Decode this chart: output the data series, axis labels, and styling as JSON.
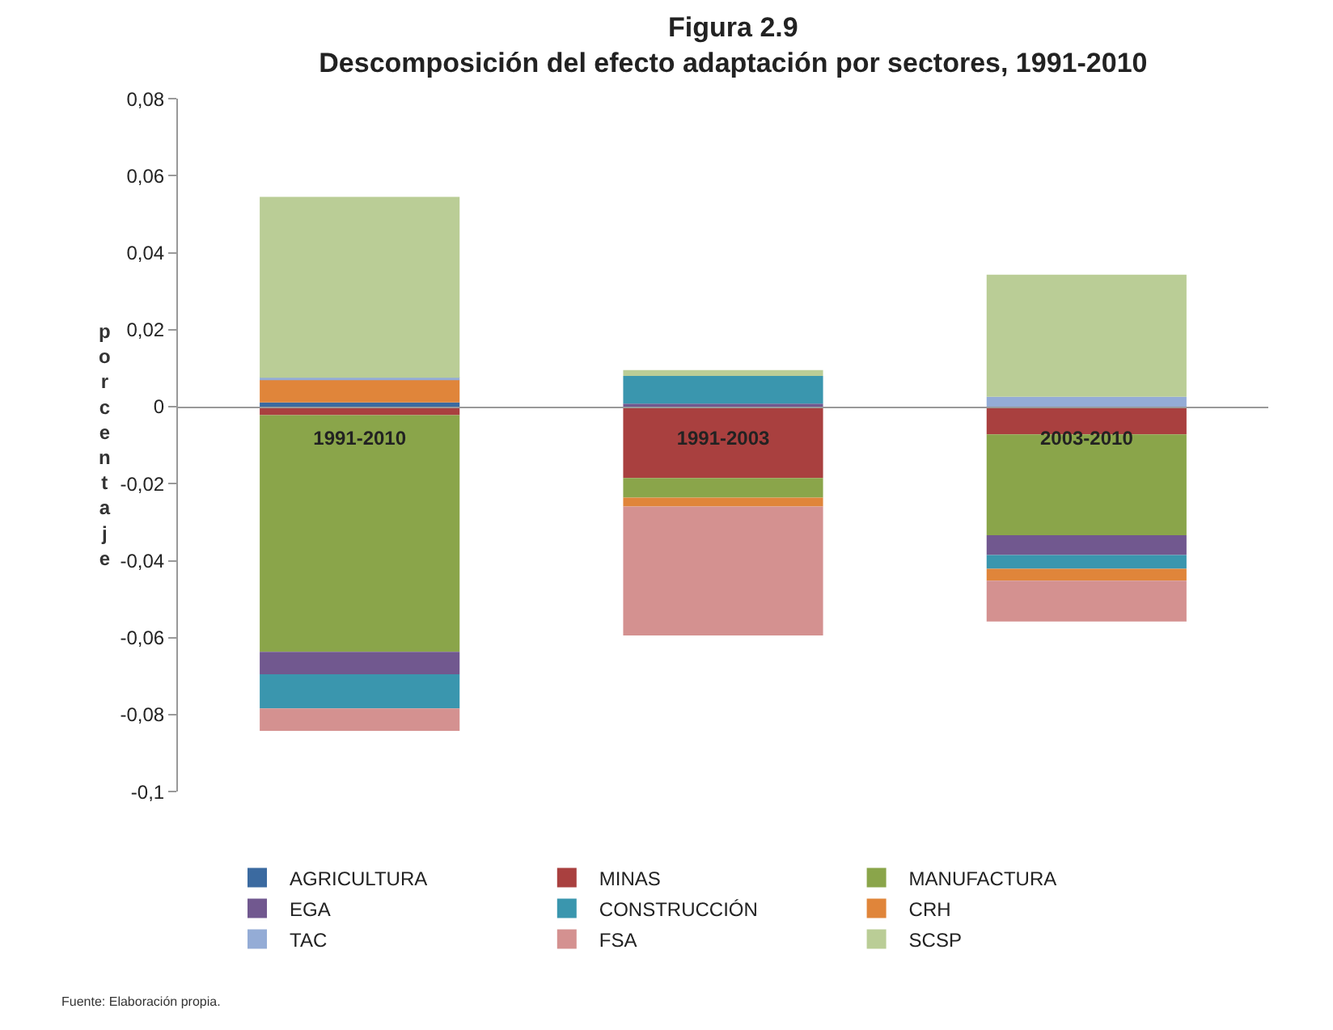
{
  "chart_data": {
    "type": "bar",
    "title": "Figura 2.9",
    "subtitle": "Descomposición del efecto adaptación por sectores, 1991-2010",
    "ylabel": "porcentaje",
    "categories": [
      "1991-2010",
      "1991-2003",
      "2003-2010"
    ],
    "stacked": true,
    "series": [
      {
        "name": "AGRICULTURA",
        "color": "#3b6aa0",
        "values": [
          0.0011,
          null,
          null
        ]
      },
      {
        "name": "MINAS",
        "color": "#a9403f",
        "values": [
          -0.0022,
          -0.0185,
          -0.0072
        ]
      },
      {
        "name": "MANUFACTURA",
        "color": "#8aa54a",
        "values": [
          -0.0615,
          -0.0051,
          -0.0262
        ]
      },
      {
        "name": "EGA",
        "color": "#71588f",
        "values": [
          -0.0058,
          0.0008,
          -0.0051
        ]
      },
      {
        "name": "CONSTRUCCIÓN",
        "color": "#3a96ae",
        "values": [
          -0.0089,
          0.0072,
          -0.0036
        ]
      },
      {
        "name": "CRH",
        "color": "#e0853a",
        "values": [
          0.0059,
          -0.0023,
          -0.0031
        ]
      },
      {
        "name": "TAC",
        "color": "#94acd6",
        "values": [
          0.0005,
          null,
          0.0026
        ]
      },
      {
        "name": "FSA",
        "color": "#d49190",
        "values": [
          -0.0058,
          -0.0335,
          -0.0106
        ]
      },
      {
        "name": "SCSP",
        "color": "#bacd96",
        "values": [
          0.047,
          0.0015,
          0.0317
        ]
      }
    ],
    "ylim": [
      -0.1,
      0.08
    ],
    "yticks": [
      {
        "value": -0.1,
        "label": "-0,1"
      },
      {
        "value": -0.08,
        "label": "-0,08"
      },
      {
        "value": -0.06,
        "label": "-0,06"
      },
      {
        "value": -0.04,
        "label": "-0,04"
      },
      {
        "value": -0.02,
        "label": "-0,02"
      },
      {
        "value": 0,
        "label": "0"
      },
      {
        "value": 0.02,
        "label": "0,02"
      },
      {
        "value": 0.04,
        "label": "0,04"
      },
      {
        "value": 0.06,
        "label": "0,06"
      },
      {
        "value": 0.08,
        "label": "0,08"
      }
    ],
    "legend": "bottom",
    "annotations": [
      "Fuente: Elaboración propia."
    ]
  }
}
